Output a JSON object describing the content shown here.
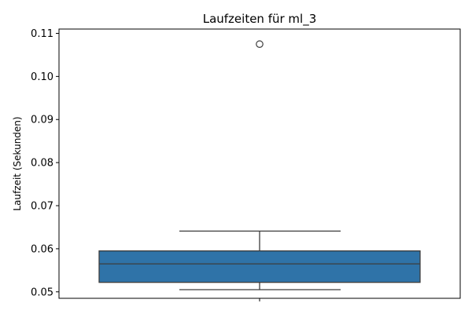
{
  "chart_data": {
    "type": "box",
    "title": "Laufzeiten für ml_3",
    "xlabel": "",
    "ylabel": "Laufzeit (Sekunden)",
    "ylim": [
      0.0485,
      0.111
    ],
    "yticks": [
      0.05,
      0.06,
      0.07,
      0.08,
      0.09,
      0.1,
      0.11
    ],
    "ytick_labels": [
      "0.05",
      "0.06",
      "0.07",
      "0.08",
      "0.09",
      "0.10",
      "0.11"
    ],
    "grid": false,
    "box": {
      "whisker_low": 0.0505,
      "q1": 0.0522,
      "median": 0.0565,
      "q3": 0.0595,
      "whisker_high": 0.0641,
      "outliers": [
        0.1075
      ]
    },
    "colors": {
      "box_fill": "#2f73a8",
      "line": "#3c3c3c"
    }
  }
}
